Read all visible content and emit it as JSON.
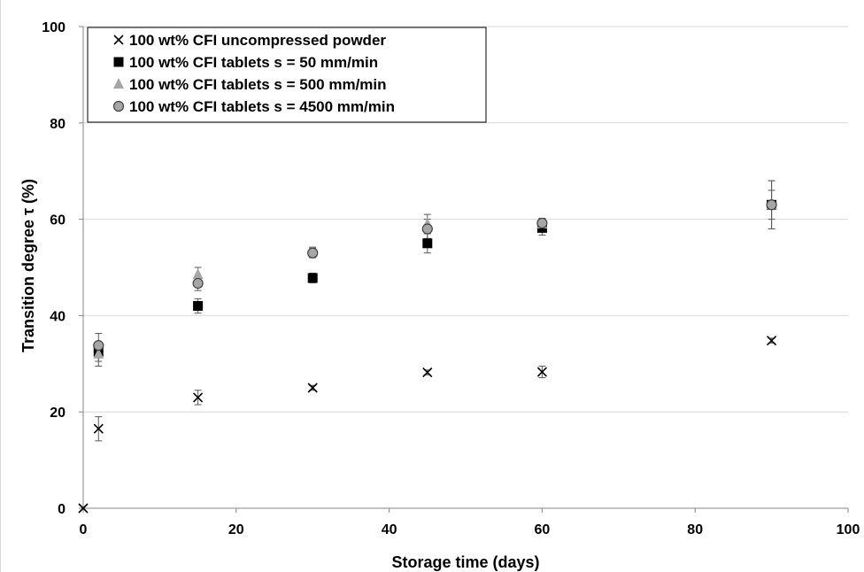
{
  "chart_data": {
    "type": "scatter",
    "xlabel": "Storage time (days)",
    "ylabel": "Transition degree τ (%)",
    "xlim": [
      0,
      100
    ],
    "ylim": [
      0,
      100
    ],
    "xticks": [
      0,
      20,
      40,
      60,
      80,
      100
    ],
    "yticks": [
      0,
      20,
      40,
      60,
      80,
      100
    ],
    "grid": "horizontal",
    "legend_position": "top-left",
    "colors": {
      "gridline": "#d9d9d9",
      "axis": "#868686",
      "errorbar": "#595959",
      "square": "#000000",
      "triangle": "#a6a6a6",
      "circle": "#a6a6a6"
    },
    "series": [
      {
        "name": "100 wt% CFI uncompressed powder",
        "marker": "x",
        "x": [
          0,
          2,
          15,
          30,
          45,
          60,
          90
        ],
        "y": [
          0,
          16.5,
          23,
          25,
          28.2,
          28.3,
          34.8
        ],
        "err": [
          0,
          2.5,
          1.5,
          0.5,
          0.5,
          1.2,
          0.5
        ]
      },
      {
        "name": "100 wt% CFI tablets s = 50 mm/min",
        "marker": "square",
        "x": [
          2,
          15,
          30,
          45,
          60,
          90
        ],
        "y": [
          32.5,
          42,
          47.8,
          55,
          58.2,
          63
        ],
        "err": [
          2,
          1.5,
          1,
          2,
          1.5,
          5
        ]
      },
      {
        "name": "100 wt% CFI tablets s = 500 mm/min",
        "marker": "triangle",
        "x": [
          2,
          15,
          30,
          45,
          60,
          90
        ],
        "y": [
          32,
          48.5,
          53.2,
          59,
          59,
          63
        ],
        "err": [
          2.5,
          1.5,
          1,
          2,
          1,
          3
        ]
      },
      {
        "name": "100 wt% CFI tablets s = 4500 mm/min",
        "marker": "circle",
        "x": [
          2,
          15,
          30,
          45,
          60,
          90
        ],
        "y": [
          33.8,
          46.7,
          53,
          58,
          59.2,
          63
        ],
        "err": [
          2.5,
          1.5,
          1,
          2,
          1,
          5
        ]
      }
    ]
  }
}
